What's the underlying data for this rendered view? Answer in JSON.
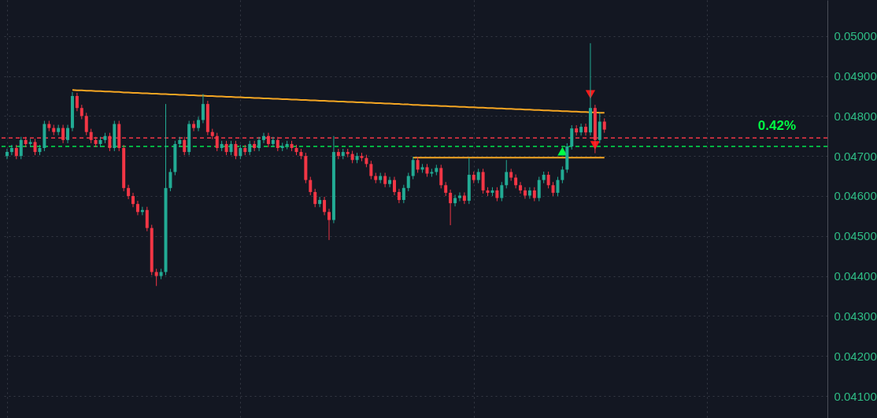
{
  "chart_data": {
    "type": "candlestick",
    "categories": [
      null,
      null,
      null,
      null,
      null,
      null,
      null,
      null,
      null,
      null,
      null,
      null,
      null,
      null,
      null,
      null,
      null,
      null,
      null,
      null,
      null,
      null,
      null,
      null,
      null,
      null,
      null,
      null,
      null,
      null,
      null,
      null,
      null,
      null,
      null,
      null,
      null,
      null,
      null,
      null,
      null,
      null,
      null,
      null,
      null,
      null,
      null,
      null,
      null,
      null,
      null,
      null,
      null,
      null,
      null,
      null,
      null,
      null,
      null,
      null,
      null,
      null,
      null,
      null,
      null,
      null,
      null,
      null,
      null,
      null,
      null,
      null,
      null,
      null,
      null,
      null,
      null,
      null,
      null,
      null,
      null,
      null,
      null,
      null,
      null,
      null,
      null,
      null,
      null,
      null,
      null,
      null,
      null,
      null,
      null,
      null,
      null,
      null,
      null,
      null,
      null,
      null,
      null,
      null,
      null,
      null,
      null,
      null,
      null,
      null,
      null,
      null,
      null,
      null,
      null,
      null,
      null,
      null,
      null,
      null,
      null,
      null,
      null,
      null,
      null,
      null,
      null,
      null,
      null
    ],
    "ohlc": [
      [
        0.047,
        0.04718,
        0.04692,
        0.0471
      ],
      [
        0.0471,
        0.04728,
        0.04702,
        0.0472
      ],
      [
        0.0472,
        0.04728,
        0.04692,
        0.047
      ],
      [
        0.047,
        0.04748,
        0.04692,
        0.0474
      ],
      [
        0.0474,
        0.04748,
        0.04722,
        0.0473
      ],
      [
        0.0473,
        0.04743,
        0.04722,
        0.04735
      ],
      [
        0.04735,
        0.04743,
        0.04702,
        0.0471
      ],
      [
        0.0471,
        0.04728,
        0.04702,
        0.0472
      ],
      [
        0.0472,
        0.04788,
        0.04712,
        0.0478
      ],
      [
        0.0478,
        0.04788,
        0.04762,
        0.0477
      ],
      [
        0.0477,
        0.04778,
        0.04752,
        0.0476
      ],
      [
        0.0476,
        0.04778,
        0.04752,
        0.0477
      ],
      [
        0.0477,
        0.04778,
        0.04732,
        0.0474
      ],
      [
        0.0474,
        0.04778,
        0.04732,
        0.0477
      ],
      [
        0.0477,
        0.0486,
        0.04762,
        0.0485
      ],
      [
        0.0485,
        0.04858,
        0.04812,
        0.0482
      ],
      [
        0.0482,
        0.04828,
        0.04792,
        0.048
      ],
      [
        0.048,
        0.04808,
        0.04752,
        0.0476
      ],
      [
        0.0476,
        0.04768,
        0.04732,
        0.0474
      ],
      [
        0.0474,
        0.04748,
        0.04722,
        0.0473
      ],
      [
        0.0473,
        0.04748,
        0.04722,
        0.0474
      ],
      [
        0.0474,
        0.04758,
        0.04732,
        0.0475
      ],
      [
        0.0475,
        0.04758,
        0.04712,
        0.0472
      ],
      [
        0.0472,
        0.04788,
        0.04712,
        0.0478
      ],
      [
        0.0478,
        0.04788,
        0.04712,
        0.0472
      ],
      [
        0.0472,
        0.04728,
        0.04612,
        0.0462
      ],
      [
        0.0462,
        0.04628,
        0.04592,
        0.046
      ],
      [
        0.046,
        0.04608,
        0.04572,
        0.0458
      ],
      [
        0.0458,
        0.04588,
        0.04552,
        0.0456
      ],
      [
        0.0456,
        0.04573,
        0.04552,
        0.04565
      ],
      [
        0.04565,
        0.04573,
        0.04512,
        0.0452
      ],
      [
        0.0452,
        0.04528,
        0.04402,
        0.0441
      ],
      [
        0.0441,
        0.04418,
        0.04375,
        0.044
      ],
      [
        0.044,
        0.04418,
        0.04392,
        0.0441
      ],
      [
        0.0441,
        0.0483,
        0.04402,
        0.0462
      ],
      [
        0.0462,
        0.04668,
        0.04612,
        0.0466
      ],
      [
        0.0466,
        0.04738,
        0.04652,
        0.0473
      ],
      [
        0.0473,
        0.04748,
        0.04722,
        0.0474
      ],
      [
        0.0474,
        0.04748,
        0.04702,
        0.0471
      ],
      [
        0.0471,
        0.04788,
        0.04702,
        0.0478
      ],
      [
        0.0478,
        0.04788,
        0.04762,
        0.0477
      ],
      [
        0.0477,
        0.04798,
        0.04762,
        0.0479
      ],
      [
        0.0479,
        0.04855,
        0.04782,
        0.0483
      ],
      [
        0.0483,
        0.04838,
        0.04752,
        0.0476
      ],
      [
        0.0476,
        0.04768,
        0.04742,
        0.0475
      ],
      [
        0.0475,
        0.04758,
        0.04712,
        0.0472
      ],
      [
        0.0472,
        0.04738,
        0.04712,
        0.0473
      ],
      [
        0.0473,
        0.04738,
        0.04702,
        0.0471
      ],
      [
        0.0471,
        0.04738,
        0.04702,
        0.0473
      ],
      [
        0.0473,
        0.04738,
        0.04692,
        0.047
      ],
      [
        0.047,
        0.04728,
        0.04692,
        0.0472
      ],
      [
        0.0472,
        0.04728,
        0.04702,
        0.0471
      ],
      [
        0.0471,
        0.04738,
        0.04702,
        0.0473
      ],
      [
        0.0473,
        0.04738,
        0.04712,
        0.0472
      ],
      [
        0.0472,
        0.04748,
        0.04712,
        0.0474
      ],
      [
        0.0474,
        0.04758,
        0.04732,
        0.0475
      ],
      [
        0.0475,
        0.04758,
        0.04722,
        0.0473
      ],
      [
        0.0473,
        0.04748,
        0.04722,
        0.0474
      ],
      [
        0.0474,
        0.04748,
        0.04712,
        0.0472
      ],
      [
        0.0472,
        0.04733,
        0.04712,
        0.04725
      ],
      [
        0.04725,
        0.04738,
        0.04717,
        0.0473
      ],
      [
        0.0473,
        0.04738,
        0.04712,
        0.0472
      ],
      [
        0.0472,
        0.04728,
        0.04702,
        0.0471
      ],
      [
        0.0471,
        0.04718,
        0.04692,
        0.047
      ],
      [
        0.047,
        0.04708,
        0.04632,
        0.0464
      ],
      [
        0.0464,
        0.04648,
        0.04602,
        0.0461
      ],
      [
        0.0461,
        0.04618,
        0.04572,
        0.0458
      ],
      [
        0.0458,
        0.04598,
        0.04572,
        0.0459
      ],
      [
        0.0459,
        0.04598,
        0.04552,
        0.0456
      ],
      [
        0.0456,
        0.04568,
        0.0449,
        0.0454
      ],
      [
        0.0454,
        0.0475,
        0.04532,
        0.0471
      ],
      [
        0.0471,
        0.04718,
        0.04692,
        0.047
      ],
      [
        0.047,
        0.04718,
        0.04692,
        0.0471
      ],
      [
        0.0471,
        0.04718,
        0.04697,
        0.04705
      ],
      [
        0.04705,
        0.04713,
        0.04682,
        0.0469
      ],
      [
        0.0469,
        0.04708,
        0.04682,
        0.047
      ],
      [
        0.047,
        0.04708,
        0.04687,
        0.04695
      ],
      [
        0.04695,
        0.04703,
        0.04672,
        0.0468
      ],
      [
        0.0468,
        0.04688,
        0.04642,
        0.0465
      ],
      [
        0.0465,
        0.04658,
        0.04632,
        0.0464
      ],
      [
        0.0464,
        0.04658,
        0.04632,
        0.0465
      ],
      [
        0.0465,
        0.04658,
        0.04622,
        0.0463
      ],
      [
        0.0463,
        0.04648,
        0.04622,
        0.0464
      ],
      [
        0.0464,
        0.04648,
        0.04602,
        0.0461
      ],
      [
        0.0461,
        0.04618,
        0.04582,
        0.0459
      ],
      [
        0.0459,
        0.04628,
        0.04582,
        0.0462
      ],
      [
        0.0462,
        0.04658,
        0.04612,
        0.0465
      ],
      [
        0.0465,
        0.04698,
        0.04642,
        0.0469
      ],
      [
        0.0469,
        0.04698,
        0.04658,
        0.04666
      ],
      [
        0.04666,
        0.0468,
        0.04658,
        0.04672
      ],
      [
        0.04672,
        0.0468,
        0.04648,
        0.04656
      ],
      [
        0.04656,
        0.04668,
        0.04648,
        0.0466
      ],
      [
        0.0466,
        0.04678,
        0.04652,
        0.0467
      ],
      [
        0.0467,
        0.04678,
        0.04619,
        0.04627
      ],
      [
        0.04627,
        0.04635,
        0.046,
        0.04608
      ],
      [
        0.04608,
        0.04616,
        0.04527,
        0.04582
      ],
      [
        0.04582,
        0.04603,
        0.04574,
        0.04595
      ],
      [
        0.04595,
        0.04609,
        0.04587,
        0.04601
      ],
      [
        0.04601,
        0.04609,
        0.0458,
        0.04588
      ],
      [
        0.04588,
        0.04695,
        0.0458,
        0.04653
      ],
      [
        0.04653,
        0.04661,
        0.04632,
        0.0464
      ],
      [
        0.0464,
        0.04668,
        0.04632,
        0.0466
      ],
      [
        0.0466,
        0.04668,
        0.04606,
        0.04614
      ],
      [
        0.04614,
        0.04622,
        0.046,
        0.04608
      ],
      [
        0.04608,
        0.04622,
        0.046,
        0.04614
      ],
      [
        0.04614,
        0.04622,
        0.04587,
        0.04595
      ],
      [
        0.04595,
        0.04635,
        0.04587,
        0.04627
      ],
      [
        0.04627,
        0.0469,
        0.04619,
        0.0466
      ],
      [
        0.0466,
        0.04668,
        0.04638,
        0.04646
      ],
      [
        0.04646,
        0.04654,
        0.04619,
        0.04627
      ],
      [
        0.04627,
        0.04635,
        0.04606,
        0.04614
      ],
      [
        0.04614,
        0.04622,
        0.04593,
        0.04601
      ],
      [
        0.04601,
        0.04622,
        0.04593,
        0.04614
      ],
      [
        0.04614,
        0.04622,
        0.04587,
        0.04595
      ],
      [
        0.04595,
        0.04648,
        0.04587,
        0.0464
      ],
      [
        0.0464,
        0.04661,
        0.04632,
        0.04653
      ],
      [
        0.04653,
        0.04661,
        0.04619,
        0.04627
      ],
      [
        0.04627,
        0.04635,
        0.046,
        0.04608
      ],
      [
        0.04608,
        0.04648,
        0.046,
        0.0464
      ],
      [
        0.0464,
        0.04674,
        0.04632,
        0.04666
      ],
      [
        0.04666,
        0.04732,
        0.04658,
        0.04724
      ],
      [
        0.04724,
        0.04777,
        0.04716,
        0.04769
      ],
      [
        0.04769,
        0.04777,
        0.04751,
        0.04759
      ],
      [
        0.04759,
        0.04781,
        0.04751,
        0.04773
      ],
      [
        0.04773,
        0.04781,
        0.04751,
        0.04759
      ],
      [
        0.04759,
        0.04982,
        0.04751,
        0.0482
      ],
      [
        0.0482,
        0.04828,
        0.04707,
        0.0474
      ],
      [
        0.0474,
        0.04808,
        0.04732,
        0.04786
      ],
      [
        0.04786,
        0.04794,
        0.04758,
        0.04766
      ]
    ],
    "colors": [
      "#22ab94",
      "#22ab94",
      "#f23645",
      "#22ab94",
      "#f23645",
      "#22ab94",
      "#f23645",
      "#22ab94",
      "#22ab94",
      "#f23645",
      "#f23645",
      "#22ab94",
      "#f23645",
      "#22ab94",
      "#22ab94",
      "#f23645",
      "#f23645",
      "#f23645",
      "#f23645",
      "#f23645",
      "#22ab94",
      "#22ab94",
      "#f23645",
      "#22ab94",
      "#f23645",
      "#f23645",
      "#f23645",
      "#f23645",
      "#f23645",
      "#22ab94",
      "#f23645",
      "#f23645",
      "#f23645",
      "#22ab94",
      "#22ab94",
      "#22ab94",
      "#22ab94",
      "#22ab94",
      "#f23645",
      "#22ab94",
      "#f23645",
      "#22ab94",
      "#22ab94",
      "#f23645",
      "#f23645",
      "#f23645",
      "#22ab94",
      "#f23645",
      "#22ab94",
      "#f23645",
      "#22ab94",
      "#f23645",
      "#22ab94",
      "#f23645",
      "#22ab94",
      "#22ab94",
      "#f23645",
      "#22ab94",
      "#f23645",
      "#22ab94",
      "#22ab94",
      "#f23645",
      "#f23645",
      "#f23645",
      "#f23645",
      "#f23645",
      "#f23645",
      "#22ab94",
      "#f23645",
      "#f23645",
      "#22ab94",
      "#f23645",
      "#22ab94",
      "#f23645",
      "#f23645",
      "#22ab94",
      "#f23645",
      "#f23645",
      "#f23645",
      "#f23645",
      "#22ab94",
      "#f23645",
      "#22ab94",
      "#f23645",
      "#f23645",
      "#22ab94",
      "#22ab94",
      "#22ab94",
      "#f23645",
      "#22ab94",
      "#f23645",
      "#22ab94",
      "#22ab94",
      "#f23645",
      "#f23645",
      "#f23645",
      "#22ab94",
      "#22ab94",
      "#f23645",
      "#22ab94",
      "#f23645",
      "#22ab94",
      "#f23645",
      "#f23645",
      "#22ab94",
      "#f23645",
      "#22ab94",
      "#22ab94",
      "#f23645",
      "#f23645",
      "#f23645",
      "#f23645",
      "#22ab94",
      "#f23645",
      "#22ab94",
      "#22ab94",
      "#f23645",
      "#f23645",
      "#22ab94",
      "#22ab94",
      "#22ab94",
      "#22ab94",
      "#f23645",
      "#22ab94",
      "#f23645",
      "#22ab94",
      "#f23645",
      "#22ab94",
      "#f23645"
    ],
    "series": [
      {
        "type": "line",
        "color": "#f5a623",
        "values": [
          null,
          null,
          null,
          null,
          null,
          null,
          null,
          null,
          null,
          null,
          null,
          null,
          null,
          null,
          0.04865,
          0.04864,
          0.04864,
          0.04863,
          0.04863,
          0.04862,
          0.04862,
          0.04861,
          0.04861,
          0.0486,
          0.0486,
          0.04859,
          0.04859,
          0.04858,
          0.04858,
          0.04857,
          0.04857,
          0.04856,
          0.04856,
          0.04855,
          0.04855,
          0.04854,
          0.04854,
          0.04853,
          0.04853,
          0.04852,
          0.04852,
          0.04851,
          0.04851,
          0.0485,
          0.0485,
          0.04849,
          0.04849,
          0.04848,
          0.04848,
          0.04847,
          0.04847,
          0.04846,
          0.04846,
          0.04845,
          0.04845,
          0.04844,
          0.04844,
          0.04843,
          0.04843,
          0.04842,
          0.04842,
          0.04841,
          0.04841,
          0.0484,
          0.0484,
          0.04839,
          0.04839,
          0.04838,
          0.04838,
          0.04837,
          0.04837,
          0.04836,
          0.04836,
          0.04835,
          0.04835,
          0.04834,
          0.04834,
          0.04833,
          0.04833,
          0.04832,
          0.04832,
          0.04831,
          0.04831,
          0.0483,
          0.0483,
          0.04829,
          0.04829,
          0.04828,
          0.04828,
          0.04827,
          0.04827,
          0.04826,
          0.04826,
          0.04825,
          0.04825,
          0.04824,
          0.04824,
          0.04823,
          0.04823,
          0.04822,
          0.04822,
          0.04821,
          0.04821,
          0.0482,
          0.0482,
          0.04819,
          0.04819,
          0.04818,
          0.04818,
          0.04817,
          0.04817,
          0.04816,
          0.04816,
          0.04815,
          0.04815,
          0.04814,
          0.04814,
          0.04813,
          0.04813,
          0.04812,
          0.04812,
          0.04811,
          0.04811,
          0.0481,
          0.0481,
          0.04809,
          0.04809,
          0.04808,
          0.04808
        ]
      },
      {
        "type": "line",
        "color": "#f5a623",
        "values": [
          null,
          null,
          null,
          null,
          null,
          null,
          null,
          null,
          null,
          null,
          null,
          null,
          null,
          null,
          null,
          null,
          null,
          null,
          null,
          null,
          null,
          null,
          null,
          null,
          null,
          null,
          null,
          null,
          null,
          null,
          null,
          null,
          null,
          null,
          null,
          null,
          null,
          null,
          null,
          null,
          null,
          null,
          null,
          null,
          null,
          null,
          null,
          null,
          null,
          null,
          null,
          null,
          null,
          null,
          null,
          null,
          null,
          null,
          null,
          null,
          null,
          null,
          null,
          null,
          null,
          null,
          null,
          null,
          null,
          null,
          null,
          null,
          null,
          null,
          null,
          null,
          null,
          null,
          null,
          null,
          null,
          null,
          null,
          null,
          null,
          null,
          null,
          0.04696,
          0.04696,
          0.04696,
          0.04696,
          0.04696,
          0.04696,
          0.04696,
          0.04696,
          0.04696,
          0.04696,
          0.04696,
          0.04696,
          0.04696,
          0.04696,
          0.04696,
          0.04696,
          0.04696,
          0.04696,
          0.04696,
          0.04696,
          0.04696,
          0.04696,
          0.04696,
          0.04696,
          0.04696,
          0.04696,
          0.04696,
          0.04696,
          0.04696,
          0.04696,
          0.04696,
          0.04696,
          0.04696,
          0.04696,
          0.04696,
          0.04696,
          0.04696,
          0.04696,
          0.04696,
          0.04696,
          0.04696,
          0.04696
        ]
      },
      {
        "type": "scatter",
        "color": "#00ff44",
        "marker": "triangle",
        "values": [
          null,
          null,
          null,
          null,
          null,
          null,
          null,
          null,
          null,
          null,
          null,
          null,
          null,
          null,
          null,
          null,
          null,
          null,
          null,
          null,
          null,
          null,
          null,
          null,
          null,
          null,
          null,
          null,
          null,
          null,
          null,
          null,
          null,
          null,
          null,
          null,
          null,
          null,
          null,
          null,
          null,
          null,
          null,
          null,
          null,
          null,
          null,
          null,
          null,
          null,
          null,
          null,
          null,
          null,
          null,
          null,
          null,
          null,
          null,
          null,
          null,
          null,
          null,
          null,
          null,
          null,
          null,
          null,
          null,
          null,
          null,
          null,
          null,
          null,
          null,
          null,
          null,
          null,
          null,
          null,
          null,
          null,
          null,
          null,
          null,
          null,
          null,
          null,
          null,
          null,
          null,
          null,
          null,
          null,
          null,
          null,
          null,
          null,
          null,
          null,
          null,
          null,
          null,
          null,
          null,
          null,
          null,
          null,
          null,
          null,
          null,
          null,
          null,
          null,
          null,
          null,
          null,
          null,
          null,
          0.04712,
          null,
          null,
          null,
          null,
          null,
          null,
          null,
          null,
          null
        ]
      },
      {
        "type": "scatter",
        "color": "#ff1a1a",
        "marker": "triangle-down",
        "values": [
          null,
          null,
          null,
          null,
          null,
          null,
          null,
          null,
          null,
          null,
          null,
          null,
          null,
          null,
          null,
          null,
          null,
          null,
          null,
          null,
          null,
          null,
          null,
          null,
          null,
          null,
          null,
          null,
          null,
          null,
          null,
          null,
          null,
          null,
          null,
          null,
          null,
          null,
          null,
          null,
          null,
          null,
          null,
          null,
          null,
          null,
          null,
          null,
          null,
          null,
          null,
          null,
          null,
          null,
          null,
          null,
          null,
          null,
          null,
          null,
          null,
          null,
          null,
          null,
          null,
          null,
          null,
          null,
          null,
          null,
          null,
          null,
          null,
          null,
          null,
          null,
          null,
          null,
          null,
          null,
          null,
          null,
          null,
          null,
          null,
          null,
          null,
          null,
          null,
          null,
          null,
          null,
          null,
          null,
          null,
          null,
          null,
          null,
          null,
          null,
          null,
          null,
          null,
          null,
          null,
          null,
          null,
          null,
          null,
          null,
          null,
          null,
          null,
          null,
          null,
          null,
          null,
          null,
          null,
          null,
          null,
          null,
          null,
          null,
          null,
          0.04854,
          0.04727,
          null,
          null
        ]
      }
    ],
    "ref_lines": [
      {
        "axis": "y",
        "value": 0.04745,
        "color": "#f23645",
        "line_style": "dashed"
      },
      {
        "axis": "y",
        "value": 0.04724,
        "color": "#00e64d",
        "line_style": "dashed"
      }
    ],
    "annotations": [
      "0.42%"
    ],
    "ylim": [
      0.04045,
      0.0509
    ],
    "yticks": [
      {
        "value": 0.041,
        "label": "0.04100"
      },
      {
        "value": 0.042,
        "label": "0.04200"
      },
      {
        "value": 0.043,
        "label": "0.04300"
      },
      {
        "value": 0.044,
        "label": "0.04400"
      },
      {
        "value": 0.045,
        "label": "0.04500"
      },
      {
        "value": 0.046,
        "label": "0.04600"
      },
      {
        "value": 0.047,
        "label": "0.04700"
      },
      {
        "value": 0.048,
        "label": "0.04800"
      },
      {
        "value": 0.049,
        "label": "0.04900"
      },
      {
        "value": 0.05,
        "label": "0.05000"
      }
    ],
    "tick_labels": "y",
    "grid": true
  }
}
